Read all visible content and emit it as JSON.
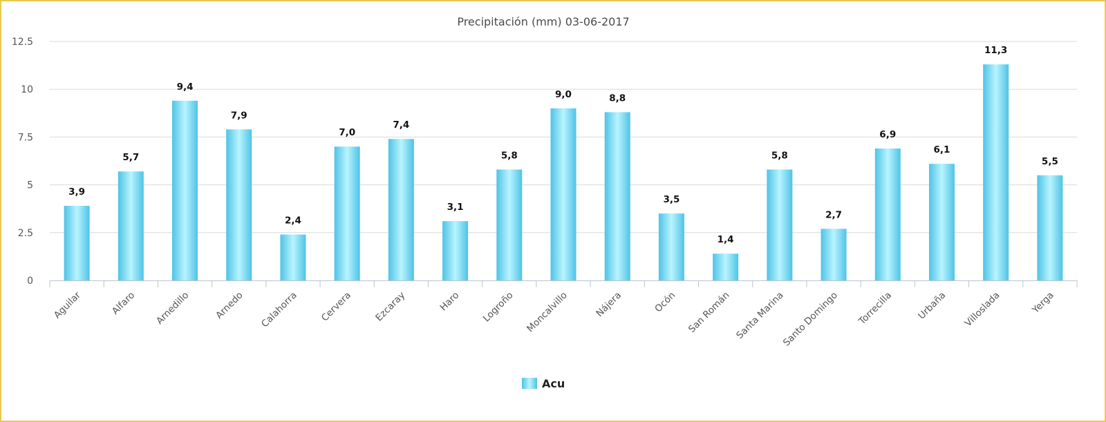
{
  "chart_data": {
    "type": "bar",
    "title": "Precipitación (mm) 03-06-2017",
    "xlabel": "",
    "ylabel": "",
    "ylim": [
      0,
      12.5
    ],
    "yticks": [
      "0",
      "2.5",
      "5",
      "7.5",
      "10",
      "12.5"
    ],
    "ytick_values": [
      0,
      2.5,
      5,
      7.5,
      10,
      12.5
    ],
    "categories": [
      "Aguilar",
      "Alfaro",
      "Arnedillo",
      "Arnedo",
      "Calahorra",
      "Cervera",
      "Ezcaray",
      "Haro",
      "Logroño",
      "Moncalvillo",
      "Nájera",
      "Ocón",
      "San Román",
      "Santa Marina",
      "Santo Domingo",
      "Torrecilla",
      "Urbaña",
      "Villoslada",
      "Yerga"
    ],
    "series": [
      {
        "name": "Acu",
        "values": [
          3.9,
          5.7,
          9.4,
          7.9,
          2.4,
          7.0,
          7.4,
          3.1,
          5.8,
          9.0,
          8.8,
          3.5,
          1.4,
          5.8,
          2.7,
          6.9,
          6.1,
          11.3,
          5.5
        ],
        "labels": [
          "3,9",
          "5,7",
          "9,4",
          "7,9",
          "2,4",
          "7,0",
          "7,4",
          "3,1",
          "5,8",
          "9,0",
          "8,8",
          "3,5",
          "1,4",
          "5,8",
          "2,7",
          "6,9",
          "6,1",
          "11,3",
          "5,5"
        ]
      }
    ],
    "legend": "bottom-center",
    "grid": true
  },
  "colors": {
    "bar_edge": "#4fc3e6",
    "bar_center": "#b8f4ff",
    "grid": "#d8d8d8",
    "border": "#e8c94a"
  }
}
